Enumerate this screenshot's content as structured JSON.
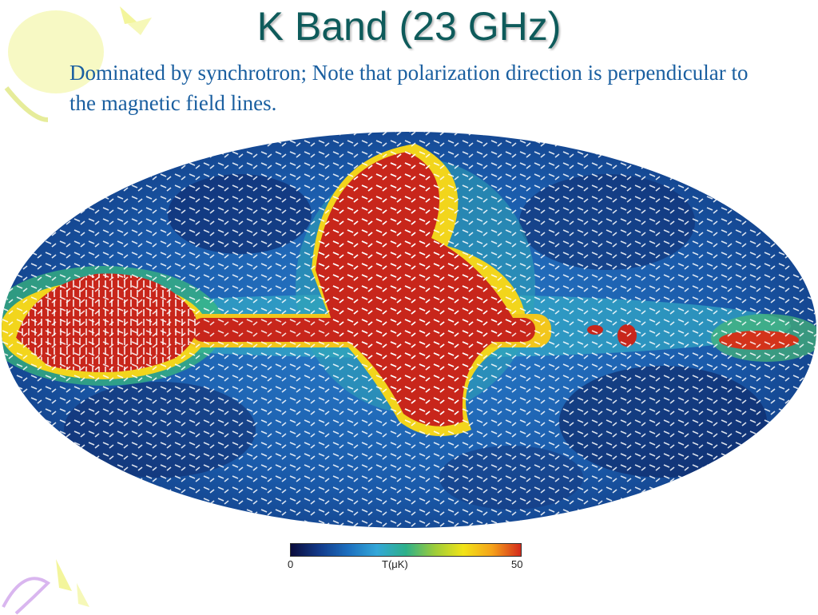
{
  "slide": {
    "title": "K Band (23 GHz)",
    "text": "Dominated by synchrotron; Note that polarization direction is perpendicular to the magnetic field lines."
  },
  "colorbar": {
    "min_label": "0",
    "unit_label": "T(μK)",
    "max_label": "50",
    "colors": [
      "#0b0c3c",
      "#123a8a",
      "#1c6fbf",
      "#33a7d8",
      "#2db08a",
      "#9ccc3a",
      "#f2e418",
      "#f5a21a",
      "#d42a1c"
    ]
  },
  "colors": {
    "title": "#0e5b5b",
    "text": "#1a5fa0",
    "map_background": "#1656a6",
    "map_hot": "#c8261b",
    "decoration": "#f2f59a"
  }
}
